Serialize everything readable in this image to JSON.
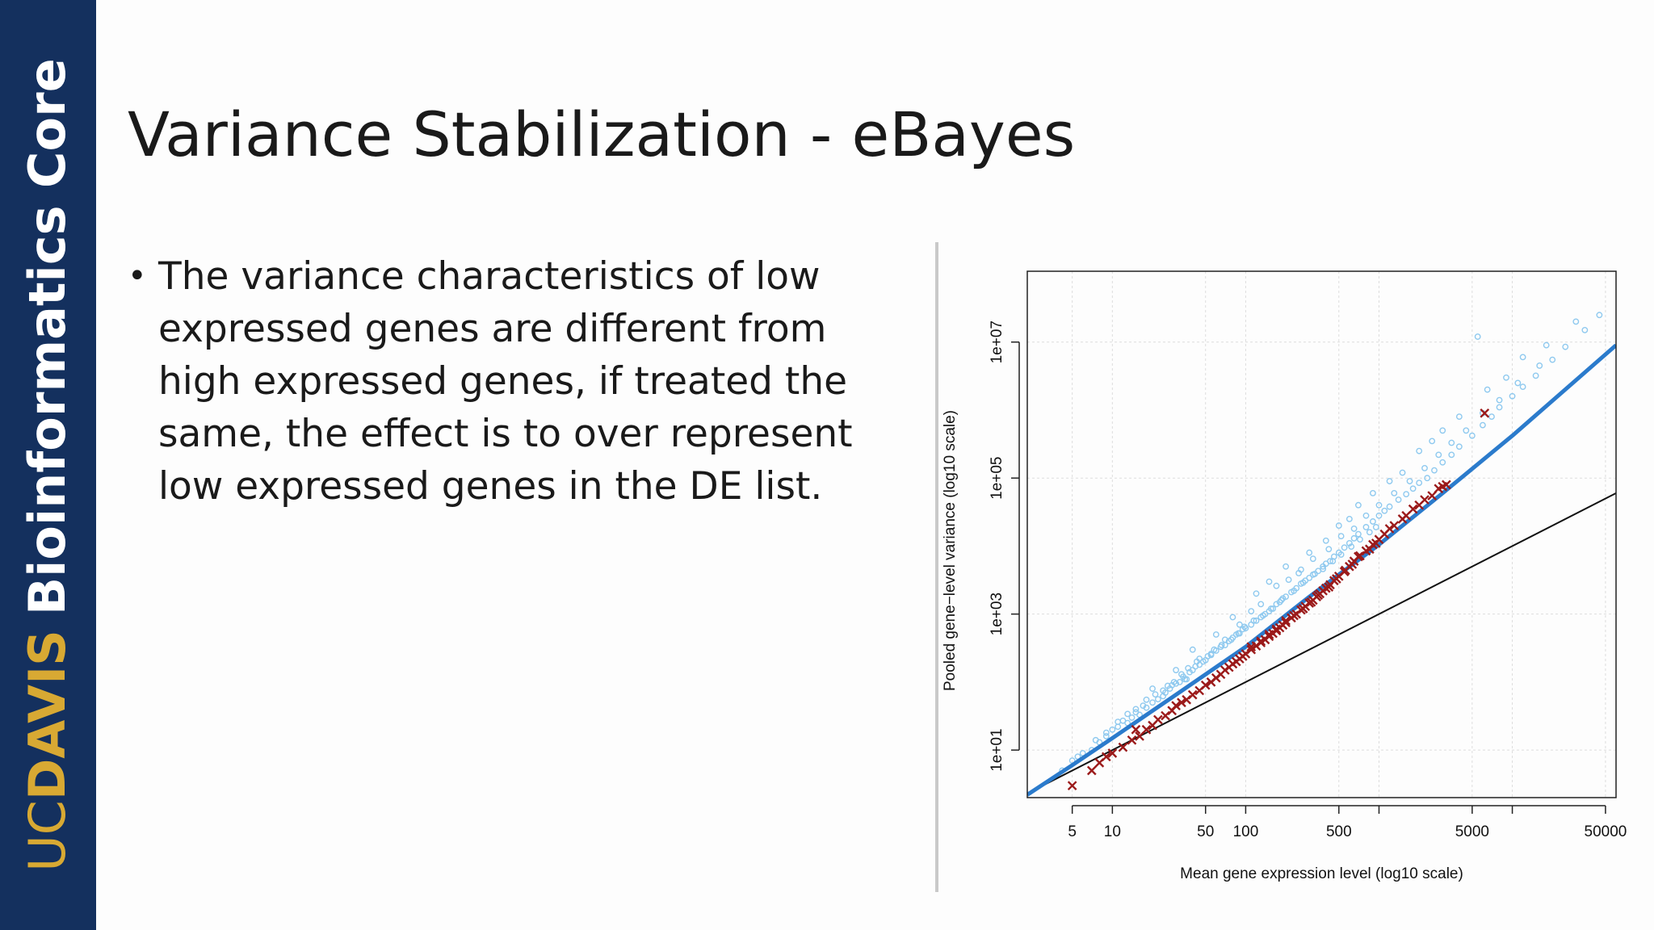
{
  "brand": {
    "uc": "UC",
    "davis": "DAVIS",
    "core": "Bioinformatics Core"
  },
  "slide": {
    "title": "Variance Stabilization - eBayes",
    "bullets": [
      "The variance characteristics of low expressed genes are different from high expressed genes, if treated the same, the effect is to over represent low expressed genes in the DE list."
    ]
  },
  "colors": {
    "brand_navy": "#14305e",
    "brand_gold": "#d8a933",
    "points_light": "#8ec9ef",
    "fit_line": "#2b7bcc",
    "marks_x": "#9b1a1a",
    "identity_line": "#111111"
  },
  "chart_data": {
    "type": "scatter",
    "x_scale": "log10",
    "y_scale": "log10",
    "xlabel": "Mean gene expression level (log10 scale)",
    "ylabel": "Pooled gene−level variance (log10 scale)",
    "xlim": [
      2.3,
      60000
    ],
    "ylim": [
      2.0,
      110000000
    ],
    "x_ticks": [
      5,
      10,
      50,
      100,
      500,
      5000,
      50000
    ],
    "x_tick_labels": [
      "5",
      "10",
      "50",
      "100",
      "500",
      "5000",
      "50000"
    ],
    "x_minor_ticks": [
      1000,
      10000
    ],
    "y_ticks": [
      10,
      1000,
      100000,
      10000000
    ],
    "y_tick_labels": [
      "1e+01",
      "1e+03",
      "1e+05",
      "1e+07"
    ],
    "grid": true,
    "identity_line": {
      "x": [
        2.3,
        60000
      ],
      "y": [
        2.3,
        60000
      ]
    },
    "fit_line": {
      "x": [
        2.3,
        5,
        10,
        30,
        100,
        300,
        1000,
        3000,
        10000,
        60000
      ],
      "y": [
        2.2,
        6,
        15,
        65,
        330,
        1800,
        10500,
        60000,
        420000,
        9000000
      ]
    },
    "series": [
      {
        "marker": "circle",
        "points": [
          [
            4.2,
            5
          ],
          [
            5,
            7
          ],
          [
            5.5,
            8
          ],
          [
            6,
            9
          ],
          [
            7,
            10
          ],
          [
            7.5,
            14
          ],
          [
            8,
            13
          ],
          [
            9,
            16
          ],
          [
            10,
            20
          ],
          [
            11,
            22
          ],
          [
            12,
            27
          ],
          [
            13,
            25
          ],
          [
            14,
            30
          ],
          [
            15,
            36
          ],
          [
            16,
            33
          ],
          [
            17,
            45
          ],
          [
            18,
            42
          ],
          [
            20,
            50
          ],
          [
            22,
            56
          ],
          [
            24,
            62
          ],
          [
            25,
            70
          ],
          [
            27,
            80
          ],
          [
            28,
            90
          ],
          [
            30,
            95
          ],
          [
            32,
            100
          ],
          [
            34,
            120
          ],
          [
            36,
            110
          ],
          [
            38,
            140
          ],
          [
            40,
            150
          ],
          [
            42,
            170
          ],
          [
            45,
            180
          ],
          [
            48,
            200
          ],
          [
            50,
            210
          ],
          [
            55,
            250
          ],
          [
            60,
            290
          ],
          [
            65,
            330
          ],
          [
            70,
            350
          ],
          [
            75,
            400
          ],
          [
            80,
            450
          ],
          [
            85,
            500
          ],
          [
            90,
            520
          ],
          [
            95,
            600
          ],
          [
            100,
            620
          ],
          [
            110,
            700
          ],
          [
            120,
            800
          ],
          [
            130,
            900
          ],
          [
            140,
            1000
          ],
          [
            150,
            1100
          ],
          [
            160,
            1200
          ],
          [
            170,
            1400
          ],
          [
            180,
            1500
          ],
          [
            190,
            1700
          ],
          [
            200,
            1800
          ],
          [
            220,
            2100
          ],
          [
            240,
            2400
          ],
          [
            260,
            2800
          ],
          [
            280,
            3100
          ],
          [
            300,
            3400
          ],
          [
            320,
            3800
          ],
          [
            350,
            4300
          ],
          [
            380,
            5000
          ],
          [
            400,
            5500
          ],
          [
            430,
            6000
          ],
          [
            460,
            7000
          ],
          [
            500,
            8000
          ],
          [
            550,
            9500
          ],
          [
            600,
            11000
          ],
          [
            650,
            13000
          ],
          [
            700,
            15000
          ],
          [
            800,
            19000
          ],
          [
            900,
            23000
          ],
          [
            1000,
            28000
          ],
          [
            1100,
            33000
          ],
          [
            1200,
            38000
          ],
          [
            1400,
            48000
          ],
          [
            1600,
            58000
          ],
          [
            1800,
            70000
          ],
          [
            2000,
            85000
          ],
          [
            2300,
            100000
          ],
          [
            2600,
            130000
          ],
          [
            3000,
            170000
          ],
          [
            3500,
            220000
          ],
          [
            4000,
            290000
          ],
          [
            5000,
            420000
          ],
          [
            6000,
            600000
          ],
          [
            7000,
            800000
          ],
          [
            8000,
            1100000
          ],
          [
            10000,
            1600000
          ],
          [
            12000,
            2200000
          ],
          [
            15000,
            3200000
          ],
          [
            20000,
            5500000
          ],
          [
            25000,
            8500000
          ],
          [
            35000,
            15000000
          ],
          [
            45000,
            25000000
          ],
          [
            20,
            80
          ],
          [
            30,
            150
          ],
          [
            40,
            300
          ],
          [
            60,
            500
          ],
          [
            80,
            900
          ],
          [
            120,
            2000
          ],
          [
            150,
            3000
          ],
          [
            200,
            5000
          ],
          [
            250,
            4000
          ],
          [
            300,
            8000
          ],
          [
            400,
            12000
          ],
          [
            500,
            20000
          ],
          [
            600,
            25000
          ],
          [
            700,
            40000
          ],
          [
            900,
            60000
          ],
          [
            1200,
            90000
          ],
          [
            1500,
            120000
          ],
          [
            2000,
            250000
          ],
          [
            2500,
            350000
          ],
          [
            3000,
            500000
          ],
          [
            4000,
            800000
          ],
          [
            5500,
            12000000
          ],
          [
            6500,
            2000000
          ],
          [
            9000,
            3000000
          ],
          [
            12000,
            6000000
          ],
          [
            18000,
            9000000
          ],
          [
            30000,
            20000000
          ],
          [
            35,
            110
          ],
          [
            45,
            220
          ],
          [
            55,
            260
          ],
          [
            70,
            420
          ],
          [
            90,
            700
          ],
          [
            110,
            1100
          ],
          [
            130,
            1400
          ],
          [
            170,
            2600
          ],
          [
            210,
            3200
          ],
          [
            260,
            4500
          ],
          [
            320,
            6500
          ],
          [
            420,
            9000
          ],
          [
            520,
            14000
          ],
          [
            650,
            18000
          ],
          [
            800,
            28000
          ],
          [
            1000,
            40000
          ],
          [
            1300,
            60000
          ],
          [
            1700,
            90000
          ],
          [
            2200,
            140000
          ],
          [
            2800,
            220000
          ],
          [
            3500,
            330000
          ],
          [
            4500,
            500000
          ],
          [
            6000,
            900000
          ],
          [
            8000,
            1400000
          ],
          [
            11000,
            2500000
          ],
          [
            16000,
            4500000
          ],
          [
            9,
            18
          ],
          [
            11,
            26
          ],
          [
            13,
            34
          ],
          [
            15,
            40
          ],
          [
            18,
            55
          ],
          [
            21,
            66
          ],
          [
            24,
            75
          ],
          [
            26,
            88
          ],
          [
            29,
            100
          ],
          [
            33,
            130
          ],
          [
            37,
            160
          ],
          [
            43,
            200
          ],
          [
            52,
            240
          ],
          [
            58,
            300
          ],
          [
            66,
            350
          ],
          [
            78,
            420
          ],
          [
            88,
            520
          ],
          [
            98,
            650
          ],
          [
            115,
            800
          ],
          [
            135,
            950
          ],
          [
            155,
            1200
          ],
          [
            185,
            1600
          ],
          [
            230,
            2200
          ],
          [
            270,
            2900
          ],
          [
            330,
            3900
          ],
          [
            380,
            4600
          ],
          [
            450,
            6000
          ],
          [
            520,
            7500
          ],
          [
            620,
            9800
          ],
          [
            720,
            12500
          ],
          [
            850,
            16000
          ],
          [
            950,
            19000
          ]
        ]
      },
      {
        "marker": "x",
        "points": [
          [
            5,
            3
          ],
          [
            7,
            5
          ],
          [
            8,
            6.5
          ],
          [
            9,
            8
          ],
          [
            10,
            9
          ],
          [
            12,
            11
          ],
          [
            14,
            14
          ],
          [
            15,
            20
          ],
          [
            16,
            16
          ],
          [
            18,
            20
          ],
          [
            20,
            23
          ],
          [
            22,
            28
          ],
          [
            25,
            32
          ],
          [
            28,
            38
          ],
          [
            30,
            45
          ],
          [
            33,
            50
          ],
          [
            36,
            55
          ],
          [
            40,
            65
          ],
          [
            45,
            75
          ],
          [
            50,
            90
          ],
          [
            55,
            100
          ],
          [
            60,
            115
          ],
          [
            65,
            130
          ],
          [
            70,
            150
          ],
          [
            75,
            165
          ],
          [
            80,
            185
          ],
          [
            85,
            200
          ],
          [
            90,
            220
          ],
          [
            95,
            240
          ],
          [
            100,
            260
          ],
          [
            110,
            300
          ],
          [
            120,
            340
          ],
          [
            130,
            380
          ],
          [
            140,
            420
          ],
          [
            150,
            470
          ],
          [
            160,
            520
          ],
          [
            170,
            570
          ],
          [
            180,
            630
          ],
          [
            190,
            690
          ],
          [
            200,
            750
          ],
          [
            220,
            880
          ],
          [
            240,
            1000
          ],
          [
            260,
            1150
          ],
          [
            280,
            1300
          ],
          [
            300,
            1450
          ],
          [
            320,
            1600
          ],
          [
            340,
            1800
          ],
          [
            360,
            2000
          ],
          [
            380,
            2200
          ],
          [
            400,
            2400
          ],
          [
            430,
            2700
          ],
          [
            460,
            3100
          ],
          [
            500,
            3600
          ],
          [
            550,
            4200
          ],
          [
            600,
            5000
          ],
          [
            650,
            6000
          ],
          [
            700,
            7000
          ],
          [
            800,
            8500
          ],
          [
            900,
            10500
          ],
          [
            1000,
            12500
          ],
          [
            1100,
            15000
          ],
          [
            1200,
            18000
          ],
          [
            1500,
            25000
          ],
          [
            1800,
            35000
          ],
          [
            2000,
            40000
          ],
          [
            2500,
            55000
          ],
          [
            2800,
            70000
          ],
          [
            3200,
            80000
          ],
          [
            6200,
            900000
          ],
          [
            110,
            330
          ],
          [
            130,
            400
          ],
          [
            150,
            500
          ],
          [
            170,
            600
          ],
          [
            200,
            800
          ],
          [
            230,
            950
          ],
          [
            270,
            1200
          ],
          [
            310,
            1500
          ],
          [
            350,
            1900
          ],
          [
            420,
            2500
          ],
          [
            480,
            3300
          ],
          [
            560,
            4400
          ],
          [
            630,
            5400
          ],
          [
            720,
            7200
          ],
          [
            850,
            9000
          ],
          [
            950,
            11000
          ],
          [
            1300,
            20000
          ],
          [
            1600,
            28000
          ],
          [
            2200,
            48000
          ],
          [
            3000,
            75000
          ]
        ]
      }
    ]
  }
}
